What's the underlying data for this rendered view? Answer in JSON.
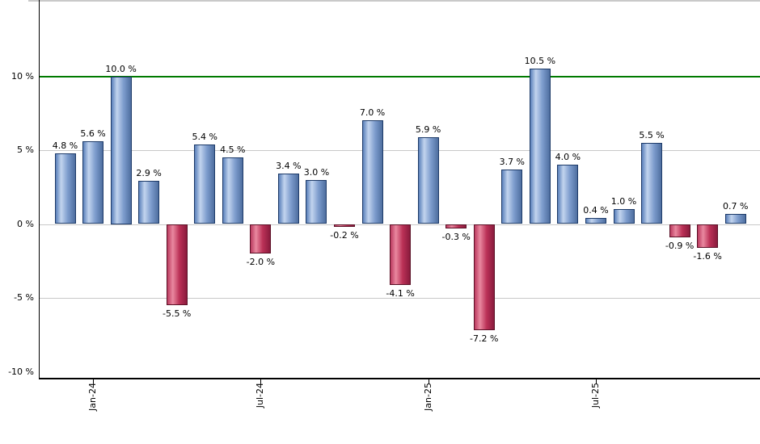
{
  "chart_data": {
    "type": "bar",
    "title": "",
    "values": [
      4.8,
      5.6,
      10.0,
      2.9,
      -5.5,
      5.4,
      4.5,
      -2.0,
      3.4,
      3.0,
      -0.2,
      7.0,
      -4.1,
      5.9,
      -0.3,
      -7.2,
      3.7,
      10.5,
      4.0,
      0.4,
      1.0,
      5.5,
      -0.9,
      -1.6,
      0.7
    ],
    "value_labels": [
      "4.8 %",
      "5.6 %",
      "10.0 %",
      "2.9 %",
      "-5.5 %",
      "5.4 %",
      "4.5 %",
      "-2.0 %",
      "3.4 %",
      "3.0 %",
      "-0.2 %",
      "7.0 %",
      "-4.1 %",
      "5.9 %",
      "-0.3 %",
      "-7.2 %",
      "3.7 %",
      "10.5 %",
      "4.0 %",
      "0.4 %",
      "1.0 %",
      "5.5 %",
      "-0.9 %",
      "-1.6 %",
      "0.7 %"
    ],
    "y_ticks": [
      {
        "value": 10,
        "label": "10 %"
      },
      {
        "value": 5,
        "label": "5 %"
      },
      {
        "value": 0,
        "label": "0 %"
      },
      {
        "value": -5,
        "label": "-5 %"
      },
      {
        "value": -10,
        "label": "-10 %"
      }
    ],
    "grid_values": [
      5,
      0,
      -5
    ],
    "reference_line": {
      "value": 10,
      "color": "#007a00"
    },
    "x_ticks": [
      {
        "bar_index": 1,
        "label": "Jan-24"
      },
      {
        "bar_index": 7,
        "label": "Jul-24"
      },
      {
        "bar_index": 13,
        "label": "Jan-25"
      },
      {
        "bar_index": 19,
        "label": "Jul-25"
      }
    ],
    "ylim": [
      -10.4,
      15.2
    ],
    "grid": true,
    "legend": "none",
    "colors": {
      "positive_bar_gradient": [
        "#5a80ba",
        "#c2d4ee",
        "#7d9ccd",
        "#4e6e9f"
      ],
      "positive_bar_border": "#1d3a68",
      "negative_bar_gradient": [
        "#bb3a5f",
        "#e9889f",
        "#bb3157",
        "#8a1b3d"
      ],
      "negative_bar_border": "#5a1026",
      "grid_line": "#c8c8c8",
      "axis_line": "#000000",
      "frame_top": "#c9c9c9",
      "label_text": "#000000",
      "background": "#ffffff"
    }
  }
}
